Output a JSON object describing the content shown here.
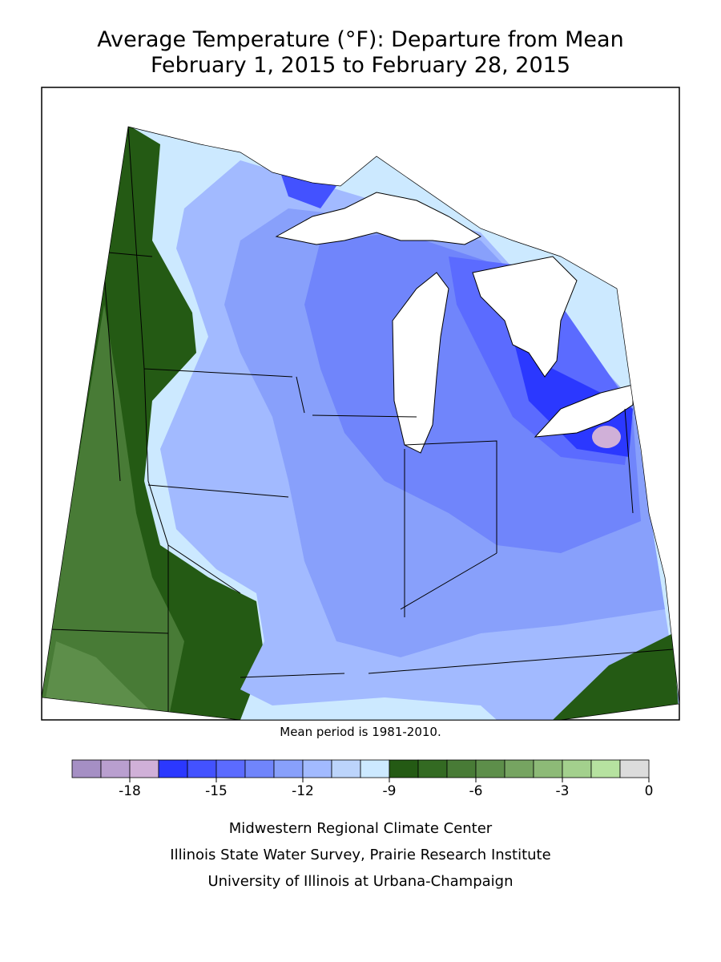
{
  "title": [
    "Average Temperature (°F): Departure from Mean",
    "February 1, 2015 to February 28, 2015"
  ],
  "note": "Mean period is 1981-2010.",
  "colorbar": {
    "bins": [
      -20,
      -19,
      -18,
      -17,
      -16,
      -15,
      -14,
      -13,
      -12,
      -11,
      -10,
      -9,
      -8,
      -7,
      -6,
      -5,
      -4,
      -3,
      -2,
      -1,
      0
    ],
    "colors": [
      "#a58fc4",
      "#b99fcf",
      "#d0b0d8",
      "#2b38ff",
      "#4352ff",
      "#5b6bff",
      "#7085fb",
      "#88a0fb",
      "#a2baff",
      "#bcd4fb",
      "#cce9ff",
      "#245a14",
      "#336a22",
      "#487b36",
      "#5d8e4a",
      "#76a461",
      "#8dba77",
      "#a3d08d",
      "#b6e2a0",
      "#dcdcdc"
    ],
    "ticks": [
      -18,
      -15,
      -12,
      -9,
      -6,
      -3,
      0
    ]
  },
  "footer": [
    "Midwestern Regional Climate Center",
    "Illinois State Water Survey, Prairie Research Institute",
    "University of Illinois at Urbana-Champaign"
  ]
}
